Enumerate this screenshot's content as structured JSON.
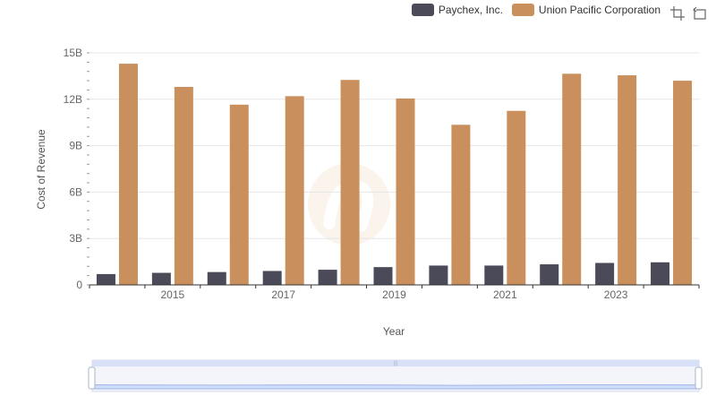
{
  "legend": {
    "series": [
      {
        "name": "Paychex, Inc.",
        "color": "#4a4a58"
      },
      {
        "name": "Union Pacific Corporation",
        "color": "#c9905e"
      }
    ]
  },
  "toolbox": {
    "icons": [
      "zoom-icon",
      "restore-icon"
    ]
  },
  "chart_data": {
    "type": "bar",
    "x": [
      2014,
      2015,
      2016,
      2017,
      2018,
      2019,
      2020,
      2021,
      2022,
      2023,
      2024
    ],
    "x_tick_labels": [
      "2015",
      "2017",
      "2019",
      "2021",
      "2023"
    ],
    "xlabel": "Year",
    "ylabel": "Cost of Revenue",
    "ylim": [
      0,
      15000000000
    ],
    "y_tick_labels": [
      "0",
      "3B",
      "6B",
      "9B",
      "12B",
      "15B"
    ],
    "y_tick_values": [
      0,
      3000000000,
      6000000000,
      9000000000,
      12000000000,
      15000000000
    ],
    "grid": true,
    "legend_position": "top-right",
    "series": [
      {
        "name": "Paychex, Inc.",
        "color": "#4a4a58",
        "values": [
          700000000,
          780000000,
          830000000,
          900000000,
          980000000,
          1150000000,
          1250000000,
          1250000000,
          1330000000,
          1420000000,
          1460000000
        ]
      },
      {
        "name": "Union Pacific Corporation",
        "color": "#c9905e",
        "values": [
          14300000000,
          12800000000,
          11650000000,
          12200000000,
          13250000000,
          12050000000,
          10350000000,
          11250000000,
          13650000000,
          13550000000,
          13200000000
        ]
      }
    ],
    "data_zoom": {
      "start": 0,
      "end": 100
    }
  }
}
